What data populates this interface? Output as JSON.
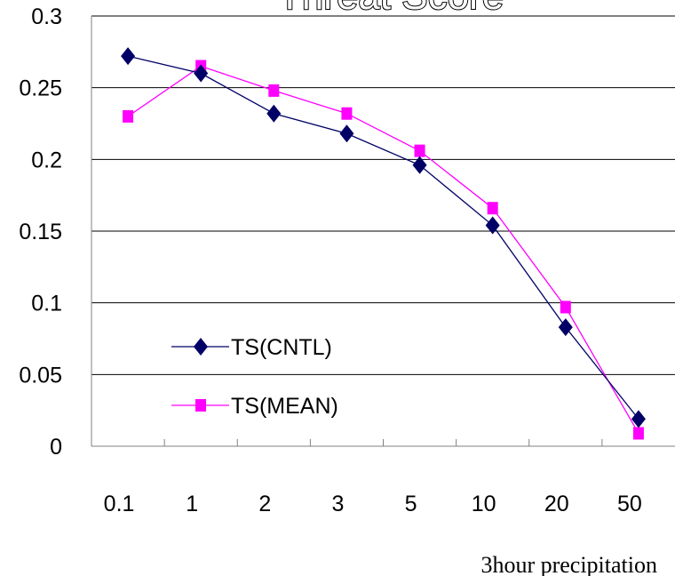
{
  "chart_data": {
    "type": "line",
    "title": "Threat Score",
    "xlabel": "3hour precipitation",
    "ylabel": "",
    "categories": [
      "0.1",
      "1",
      "2",
      "3",
      "5",
      "10",
      "20",
      "50"
    ],
    "y_ticks": [
      "0",
      "0.05",
      "0.1",
      "0.15",
      "0.2",
      "0.25",
      "0.3"
    ],
    "ylim": [
      0,
      0.3
    ],
    "grid": "horizontal",
    "legend_position": "lower-left",
    "series": [
      {
        "name": "TS(CNTL)",
        "color": "#000066",
        "marker": "diamond",
        "values": [
          0.272,
          0.26,
          0.232,
          0.218,
          0.196,
          0.154,
          0.083,
          0.019
        ]
      },
      {
        "name": "TS(MEAN)",
        "color": "#ff00ff",
        "marker": "square",
        "values": [
          0.23,
          0.265,
          0.248,
          0.232,
          0.206,
          0.166,
          0.097,
          0.009
        ]
      }
    ]
  }
}
